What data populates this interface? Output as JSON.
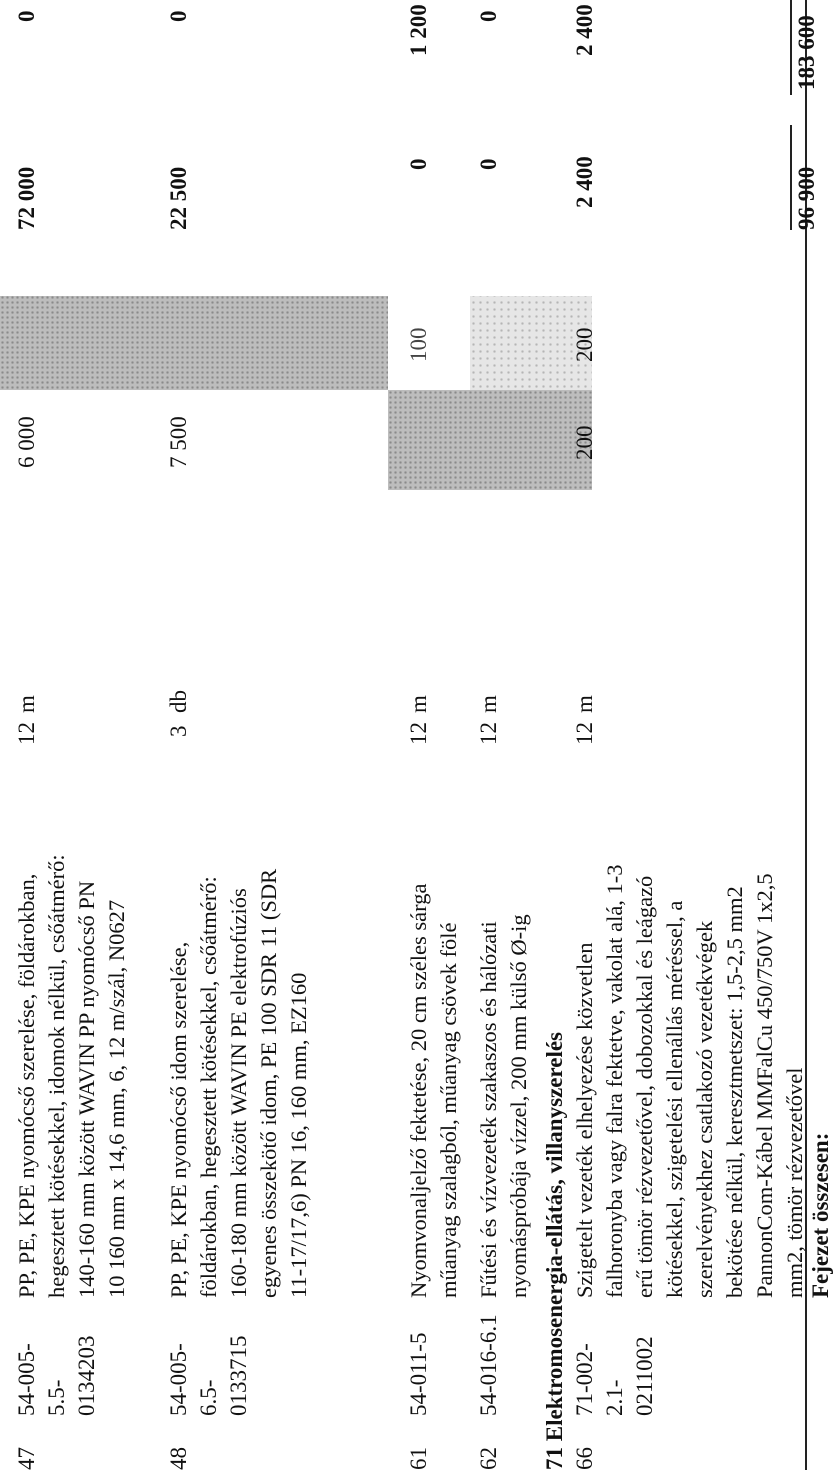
{
  "rows": [
    {
      "no": "47",
      "code": [
        "54-005-",
        "5.5-",
        "0134203"
      ],
      "desc": [
        "PP, PE, KPE nyomócső szerelése, földárokban,",
        "hegesztett kötésekkel, idomok nélkül, csőátmérő:",
        "140-160 mm között WAVIN PP nyomócső PN",
        "10 160 mm x 14,6 mm, 6, 12 m/szál, N0627"
      ],
      "qty": "12",
      "unit": "m",
      "material_unit": "6 000",
      "labour_unit": "",
      "material_total": "72 000",
      "labour_total": "0"
    },
    {
      "no": "48",
      "code": [
        "54-005-",
        "6.5-",
        "0133715"
      ],
      "desc": [
        "PP, PE, KPE nyomócső idom szerelése,",
        "földárokban, hegesztett kötésekkel, csőátmérő:",
        "160-180 mm között WAVIN PE elektrofúziós",
        "egyenes összekötő idom, PE 100 SDR 11 (SDR",
        "11-17/17,6) PN 16, 160 mm, EZ160"
      ],
      "qty": "3",
      "unit": "db",
      "material_unit": "7 500",
      "labour_unit": "",
      "material_total": "22 500",
      "labour_total": "0"
    },
    {
      "no": "61",
      "code": [
        "54-011-5"
      ],
      "desc": [
        "Nyomvonaljelző fektetése, 20 cm széles sárga",
        "műanyag szalagból, műanyag csövek fölé"
      ],
      "qty": "12",
      "unit": "m",
      "material_unit": "",
      "labour_unit": "100",
      "material_total": "0",
      "labour_total": "1 200"
    },
    {
      "no": "62",
      "code": [
        "54-016-6.1"
      ],
      "desc": [
        "Fűtési és vízvezeték szakaszos és hálózati",
        "nyomáspróbája vízzel, 200 mm külső Ø-ig"
      ],
      "qty": "12",
      "unit": "m",
      "material_unit": "",
      "labour_unit": "",
      "material_total": "0",
      "labour_total": "0"
    },
    {
      "no": "66",
      "code": [
        "71-002-",
        "2.1-",
        "0211002"
      ],
      "desc": [
        "Szigetelt vezeték elhelyezése közvetlen",
        "falhoronyba vagy falra fektetve,  vakolat alá, 1-3",
        "erű tömör rézvezetővel, dobozokkal és leágazó",
        "kötésekkel, szigetelési ellenállás méréssel, a",
        "szerelvényekhez csatlakozó vezetékvégek",
        "bekötése nélkül, keresztmetszet: 1,5-2,5 mm2",
        "PannonCom-Kábel MMFalCu 450/750V 1x2,5",
        "mm2, tömör rézvezetővel"
      ],
      "qty": "12",
      "unit": "m",
      "material_unit": "200",
      "labour_unit": "200",
      "material_total": "2 400",
      "labour_total": "2 400"
    }
  ],
  "section_heading": "71 Elektromosenergia-ellátás, villanyszerelés",
  "footer": {
    "label": "Fejezet összesen:",
    "material_total": "96 900",
    "labour_total": "183 600"
  }
}
